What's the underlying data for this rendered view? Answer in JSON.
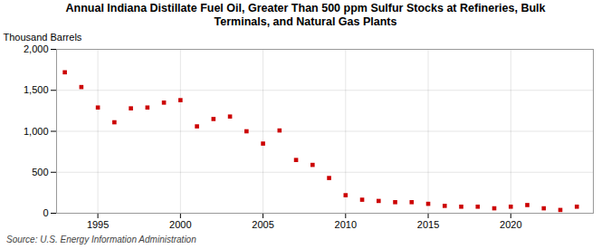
{
  "chart_data": {
    "type": "scatter",
    "title": "Annual Indiana Distillate Fuel Oil, Greater Than 500 ppm Sulfur Stocks at Refineries, Bulk\nTerminals, and Natural Gas Plants",
    "ylabel": "Thousand Barrels",
    "source": "Source: U.S. Energy Information Administration",
    "x": [
      1993,
      1994,
      1995,
      1996,
      1997,
      1998,
      1999,
      2000,
      2001,
      2002,
      2003,
      2004,
      2005,
      2006,
      2007,
      2008,
      2009,
      2010,
      2011,
      2012,
      2013,
      2014,
      2015,
      2016,
      2017,
      2018,
      2019,
      2020,
      2021,
      2022,
      2023,
      2024
    ],
    "values": [
      1720,
      1540,
      1290,
      1110,
      1280,
      1290,
      1350,
      1380,
      1060,
      1150,
      1180,
      1000,
      850,
      1010,
      650,
      590,
      430,
      220,
      165,
      150,
      135,
      135,
      115,
      90,
      80,
      80,
      60,
      80,
      100,
      60,
      40,
      80
    ],
    "color": "#cc0000",
    "marker": "square",
    "xlim": [
      1992.5,
      2025
    ],
    "ylim": [
      0,
      2000
    ],
    "xticks": [
      1995,
      2000,
      2005,
      2010,
      2015,
      2020
    ],
    "yticks": [
      0,
      500,
      {
        "value": 1000,
        "label": "1,000"
      },
      {
        "value": 1500,
        "label": "1,500"
      },
      {
        "value": 2000,
        "label": "2,000"
      }
    ],
    "grid": true
  }
}
